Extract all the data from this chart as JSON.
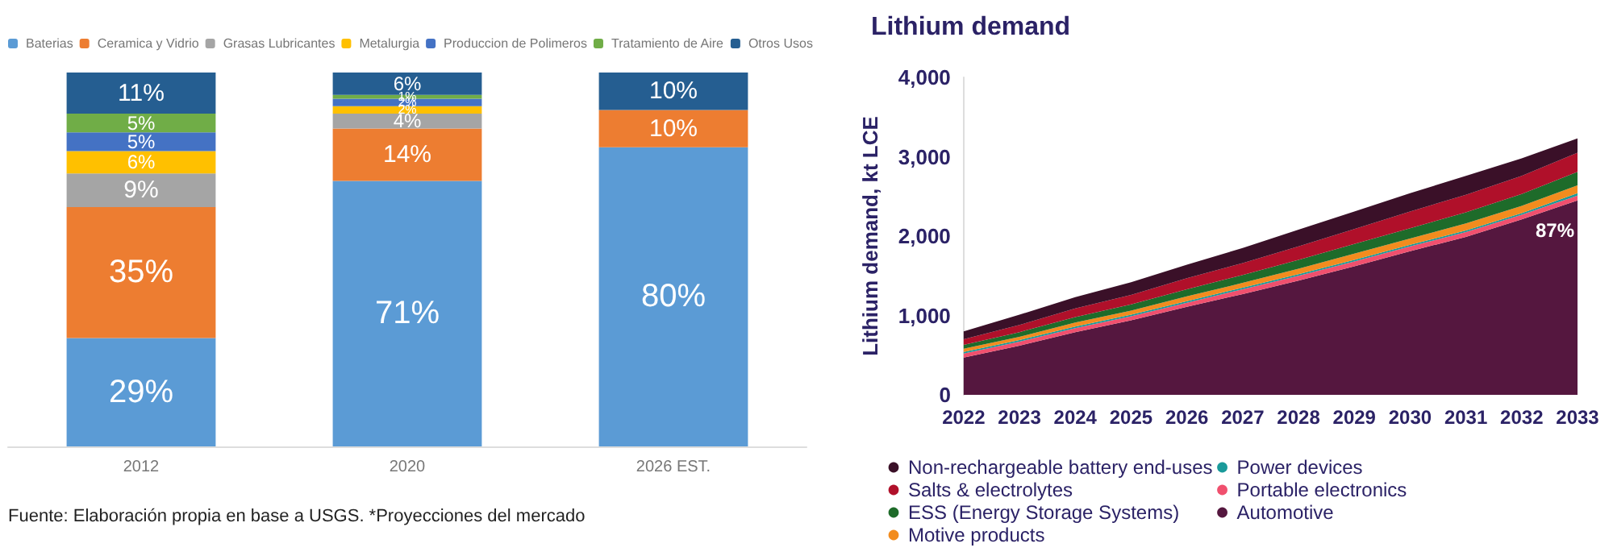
{
  "chart_data": [
    {
      "type": "bar",
      "stacked": true,
      "categories": [
        "2012",
        "2020",
        "2026 EST."
      ],
      "legend": "top",
      "grid": false,
      "series": [
        {
          "name": "Baterias",
          "color": "#5b9bd5",
          "values": [
            29,
            71,
            80
          ],
          "value_labels": [
            "29%",
            "71%",
            "80%"
          ]
        },
        {
          "name": "Ceramica y Vidrio",
          "color": "#ed7d31",
          "values": [
            35,
            14,
            10
          ],
          "value_labels": [
            "35%",
            "14%",
            "10%"
          ]
        },
        {
          "name": "Grasas Lubricantes",
          "color": "#a5a5a5",
          "values": [
            9,
            4,
            null
          ],
          "value_labels": [
            "9%",
            "4%",
            null
          ]
        },
        {
          "name": "Metalurgia",
          "color": "#ffc000",
          "values": [
            6,
            2,
            null
          ],
          "value_labels": [
            "6%",
            "2%",
            null
          ]
        },
        {
          "name": "Produccion de Polimeros",
          "color": "#4472c4",
          "values": [
            5,
            2,
            null
          ],
          "value_labels": [
            "5%",
            "2%",
            null
          ]
        },
        {
          "name": "Tratamiento de Aire",
          "color": "#70ad47",
          "values": [
            5,
            1,
            null
          ],
          "value_labels": [
            "5%",
            "1%",
            null
          ]
        },
        {
          "name": "Otros Usos",
          "color": "#255e91",
          "values": [
            11,
            6,
            10
          ],
          "value_labels": [
            "11%",
            "6%",
            "10%"
          ]
        }
      ],
      "annotations": [
        "Fuente: Elaboración propia en base a USGS. *Proyecciones del mercado"
      ]
    },
    {
      "type": "area",
      "stacked": true,
      "title": "Lithium demand",
      "ylabel": "Lithium demand, kt LCE",
      "categories": [
        "2022",
        "2023",
        "2024",
        "2025",
        "2026",
        "2027",
        "2028",
        "2029",
        "2030",
        "2031",
        "2032",
        "2033"
      ],
      "ylim": [
        0,
        4000
      ],
      "yticks": [
        {
          "value": 0,
          "label": "0"
        },
        {
          "value": 1000,
          "label": "1,000"
        },
        {
          "value": 2000,
          "label": "2,000"
        },
        {
          "value": 3000,
          "label": "3,000"
        },
        {
          "value": 4000,
          "label": "4,000"
        }
      ],
      "legend": "bottom",
      "grid": false,
      "series": [
        {
          "name": "Automotive",
          "color": "#55173f",
          "values": [
            470,
            620,
            790,
            940,
            1110,
            1270,
            1440,
            1620,
            1810,
            1990,
            2210,
            2450
          ]
        },
        {
          "name": "Portable electronics",
          "color": "#f0506e",
          "values": [
            50,
            50,
            50,
            50,
            50,
            60,
            60,
            60,
            60,
            60,
            60,
            60
          ]
        },
        {
          "name": "Power devices",
          "color": "#1a9a9a",
          "values": [
            20,
            20,
            20,
            20,
            20,
            20,
            20,
            20,
            20,
            20,
            20,
            30
          ]
        },
        {
          "name": "Motive products",
          "color": "#f28c1e",
          "values": [
            40,
            40,
            50,
            50,
            60,
            60,
            70,
            80,
            80,
            90,
            90,
            100
          ]
        },
        {
          "name": "ESS (Energy Storage Systems)",
          "color": "#1e6b2a",
          "values": [
            50,
            60,
            70,
            80,
            90,
            100,
            110,
            120,
            130,
            140,
            150,
            170
          ]
        },
        {
          "name": "Salts & electrolytes",
          "color": "#b0102a",
          "values": [
            70,
            90,
            110,
            120,
            140,
            150,
            170,
            190,
            210,
            220,
            230,
            240
          ]
        },
        {
          "name": "Non-rechargeable battery end-uses",
          "color": "#3a1028",
          "values": [
            100,
            130,
            140,
            160,
            170,
            190,
            210,
            220,
            230,
            240,
            220,
            180
          ]
        }
      ],
      "annotations": [
        {
          "text": "87%",
          "x": "2033",
          "y": 2070
        }
      ]
    }
  ]
}
